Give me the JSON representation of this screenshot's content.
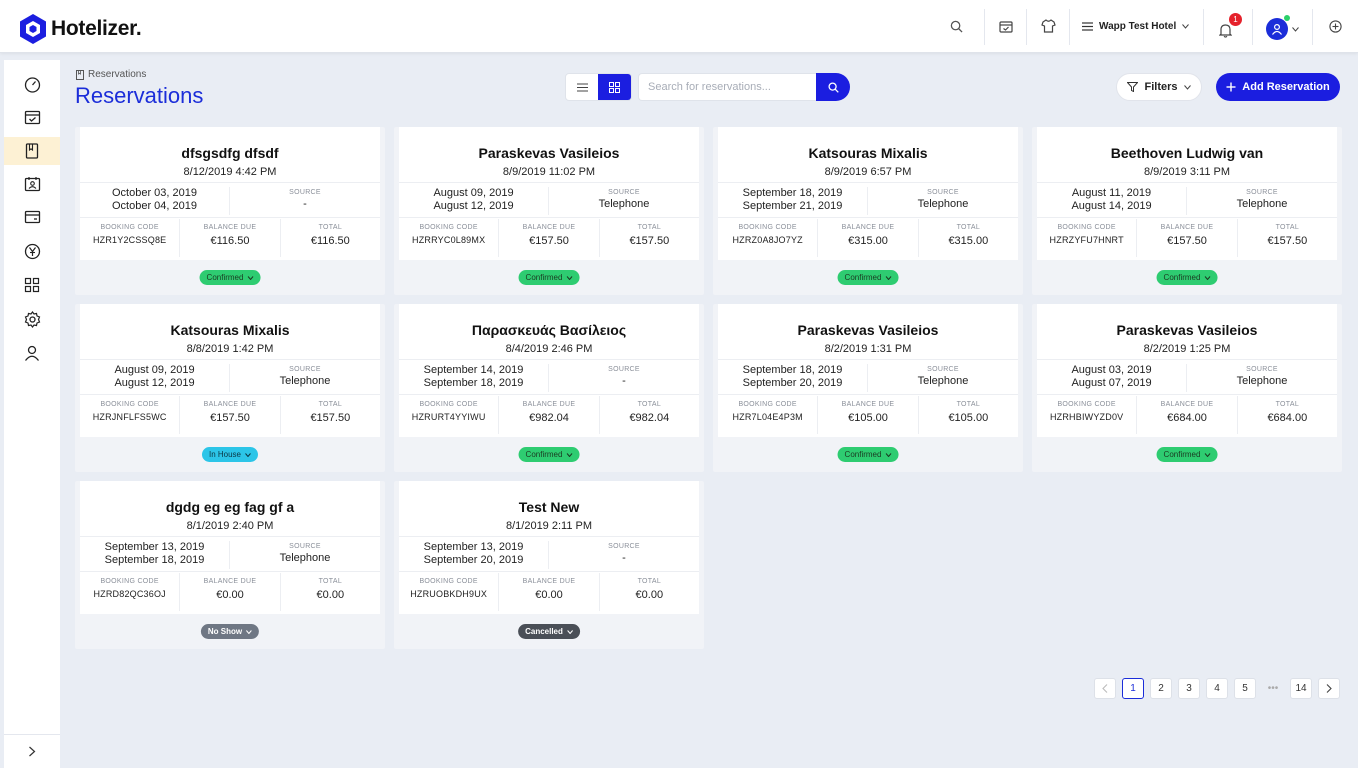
{
  "app": {
    "name": "Hotelizer."
  },
  "header": {
    "hotel_name": "Wapp Test Hotel",
    "notification_count": "1"
  },
  "breadcrumb": {
    "label": "Reservations"
  },
  "page": {
    "title": "Reservations"
  },
  "search": {
    "placeholder": "Search for reservations..."
  },
  "toolbar": {
    "filters_label": "Filters",
    "add_label": "Add Reservation"
  },
  "labels": {
    "source": "SOURCE",
    "booking_code": "BOOKING CODE",
    "balance_due": "BALANCE DUE",
    "total": "TOTAL"
  },
  "reservations": [
    {
      "name": "dfsgsdfg dfsdf",
      "created": "8/12/2019 4:42 PM",
      "checkin": "October 03, 2019",
      "checkout": "October 04, 2019",
      "source": "-",
      "code": "HZR1Y2CSSQ8E",
      "balance": "€116.50",
      "total": "€116.50",
      "status": "Confirmed"
    },
    {
      "name": "Paraskevas Vasileios",
      "created": "8/9/2019 11:02 PM",
      "checkin": "August 09, 2019",
      "checkout": "August 12, 2019",
      "source": "Telephone",
      "code": "HZRRYC0L89MX",
      "balance": "€157.50",
      "total": "€157.50",
      "status": "Confirmed"
    },
    {
      "name": "Katsouras Mixalis",
      "created": "8/9/2019 6:57 PM",
      "checkin": "September 18, 2019",
      "checkout": "September 21, 2019",
      "source": "Telephone",
      "code": "HZRZ0A8JO7YZ",
      "balance": "€315.00",
      "total": "€315.00",
      "status": "Confirmed"
    },
    {
      "name": "Beethoven Ludwig van",
      "created": "8/9/2019 3:11 PM",
      "checkin": "August 11, 2019",
      "checkout": "August 14, 2019",
      "source": "Telephone",
      "code": "HZRZYFU7HNRT",
      "balance": "€157.50",
      "total": "€157.50",
      "status": "Confirmed"
    },
    {
      "name": "Katsouras Mixalis",
      "created": "8/8/2019 1:42 PM",
      "checkin": "August 09, 2019",
      "checkout": "August 12, 2019",
      "source": "Telephone",
      "code": "HZRJNFLFS5WC",
      "balance": "€157.50",
      "total": "€157.50",
      "status": "In House"
    },
    {
      "name": "Παρασκευάς Βασίλειος",
      "created": "8/4/2019 2:46 PM",
      "checkin": "September 14, 2019",
      "checkout": "September 18, 2019",
      "source": "-",
      "code": "HZRURT4YYIWU",
      "balance": "€982.04",
      "total": "€982.04",
      "status": "Confirmed"
    },
    {
      "name": "Paraskevas Vasileios",
      "created": "8/2/2019 1:31 PM",
      "checkin": "September 18, 2019",
      "checkout": "September 20, 2019",
      "source": "Telephone",
      "code": "HZR7L04E4P3M",
      "balance": "€105.00",
      "total": "€105.00",
      "status": "Confirmed"
    },
    {
      "name": "Paraskevas Vasileios",
      "created": "8/2/2019 1:25 PM",
      "checkin": "August 03, 2019",
      "checkout": "August 07, 2019",
      "source": "Telephone",
      "code": "HZRHBIWYZD0V",
      "balance": "€684.00",
      "total": "€684.00",
      "status": "Confirmed"
    },
    {
      "name": "dgdg eg eg fag gf a",
      "created": "8/1/2019 2:40 PM",
      "checkin": "September 13, 2019",
      "checkout": "September 18, 2019",
      "source": "Telephone",
      "code": "HZRD82QC36OJ",
      "balance": "€0.00",
      "total": "€0.00",
      "status": "No Show"
    },
    {
      "name": "Test New",
      "created": "8/1/2019 2:11 PM",
      "checkin": "September 13, 2019",
      "checkout": "September 20, 2019",
      "source": "-",
      "code": "HZRUOBKDH9UX",
      "balance": "€0.00",
      "total": "€0.00",
      "status": "Cancelled"
    }
  ],
  "pagination": {
    "pages": [
      "1",
      "2",
      "3",
      "4",
      "5",
      "•••",
      "14"
    ],
    "current": "1"
  },
  "colors": {
    "accent": "#1b1ee0",
    "title": "#1b2dd9",
    "confirmed": "#2ecc71",
    "in_house": "#2cc5e8",
    "no_show": "#6f7784",
    "cancelled": "#4a4f57"
  }
}
